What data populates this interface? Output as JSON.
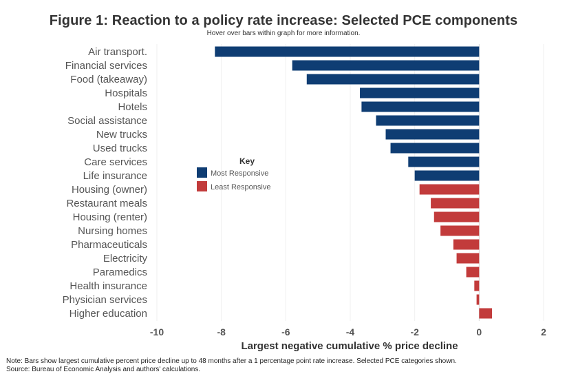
{
  "title": "Figure 1: Reaction to a policy rate increase: Selected PCE components",
  "subtitle": "Hover over bars within graph for more information.",
  "note": "Note: Bars show largest cumulative percent price decline up to 48 months after a 1 percentage point rate increase. Selected PCE categories shown.",
  "source": "Source: Bureau of Economic Analysis and authors' calculations.",
  "colors": {
    "most": "#0f3d73",
    "least": "#c23b3b"
  },
  "chart_data": {
    "type": "bar",
    "orientation": "horizontal",
    "title": "Figure 1: Reaction to a policy rate increase: Selected PCE components",
    "subtitle": "Hover over bars within graph for more information.",
    "xlabel": "Largest negative cumulative % price decline",
    "ylabel": "",
    "xlim": [
      -10,
      2
    ],
    "xticks": [
      -10,
      -8,
      -6,
      -4,
      -2,
      0,
      2
    ],
    "grid": true,
    "legend": {
      "title": "Key",
      "placement": "center-left",
      "entries": [
        {
          "label": "Most Responsive",
          "group": "most"
        },
        {
          "label": "Least Responsive",
          "group": "least"
        }
      ]
    },
    "categories": [
      "Air transport.",
      "Financial services",
      "Food (takeaway)",
      "Hospitals",
      "Hotels",
      "Social assistance",
      "New trucks",
      "Used trucks",
      "Care services",
      "Life insurance",
      "Housing (owner)",
      "Restaurant meals",
      "Housing (renter)",
      "Nursing homes",
      "Pharmaceuticals",
      "Electricity",
      "Paramedics",
      "Health insurance",
      "Physician services",
      "Higher education"
    ],
    "values": [
      -8.2,
      -5.8,
      -5.35,
      -3.7,
      -3.65,
      -3.2,
      -2.9,
      -2.75,
      -2.2,
      -2.0,
      -1.85,
      -1.5,
      -1.4,
      -1.2,
      -0.8,
      -0.7,
      -0.4,
      -0.15,
      -0.08,
      0.4
    ],
    "groups": [
      "most",
      "most",
      "most",
      "most",
      "most",
      "most",
      "most",
      "most",
      "most",
      "most",
      "least",
      "least",
      "least",
      "least",
      "least",
      "least",
      "least",
      "least",
      "least",
      "least"
    ]
  }
}
